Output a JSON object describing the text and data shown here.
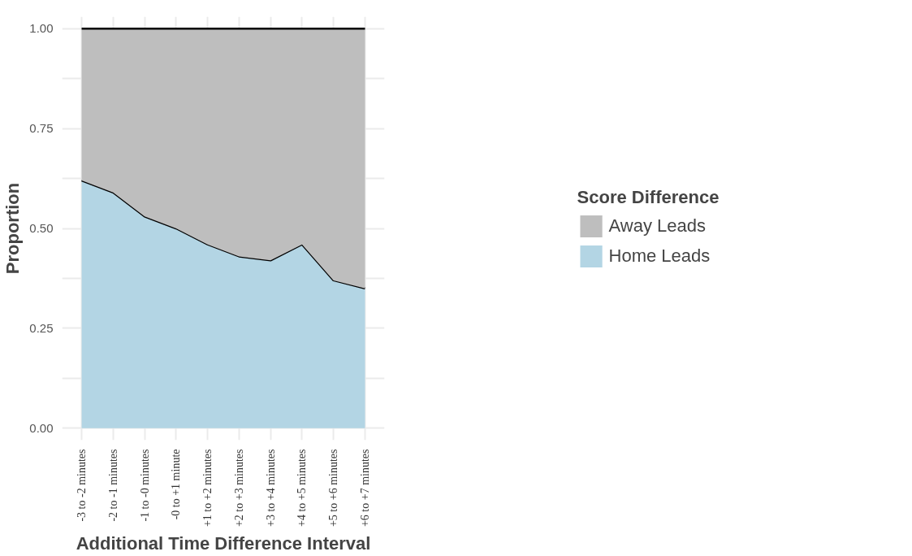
{
  "chart_data": {
    "type": "area",
    "stacked": true,
    "xlabel": "Additional Time Difference Interval",
    "ylabel": "Proportion",
    "legend_title": "Score Difference",
    "categories": [
      "-3 to -2 minutes",
      "-2 to -1 minutes",
      "-1 to -0 minutes",
      "-0 to +1 minute",
      "+1 to +2 minutes",
      "+2 to +3 minutes",
      "+3 to +4 minutes",
      "+4 to +5 minutes",
      "+5 to +6 minutes",
      "+6 to +7 minutes"
    ],
    "series": [
      {
        "name": "Home Leads",
        "color": "#b3d5e4",
        "values": [
          0.62,
          0.59,
          0.53,
          0.5,
          0.46,
          0.43,
          0.42,
          0.46,
          0.37,
          0.35
        ]
      },
      {
        "name": "Away Leads",
        "color": "#bebebe",
        "values": [
          0.38,
          0.41,
          0.47,
          0.5,
          0.54,
          0.57,
          0.58,
          0.54,
          0.63,
          0.65
        ]
      }
    ],
    "ylim": [
      -0.03,
      1.03
    ],
    "yticks": [
      {
        "value": 0,
        "label": "0.00"
      },
      {
        "value": 0.125,
        "label": null
      },
      {
        "value": 0.25,
        "label": "0.25"
      },
      {
        "value": 0.375,
        "label": null
      },
      {
        "value": 0.5,
        "label": "0.50"
      },
      {
        "value": 0.625,
        "label": null
      },
      {
        "value": 0.75,
        "label": "0.75"
      },
      {
        "value": 0.875,
        "label": null
      },
      {
        "value": 1,
        "label": "1.00"
      }
    ],
    "grid": true,
    "legend": "right"
  }
}
